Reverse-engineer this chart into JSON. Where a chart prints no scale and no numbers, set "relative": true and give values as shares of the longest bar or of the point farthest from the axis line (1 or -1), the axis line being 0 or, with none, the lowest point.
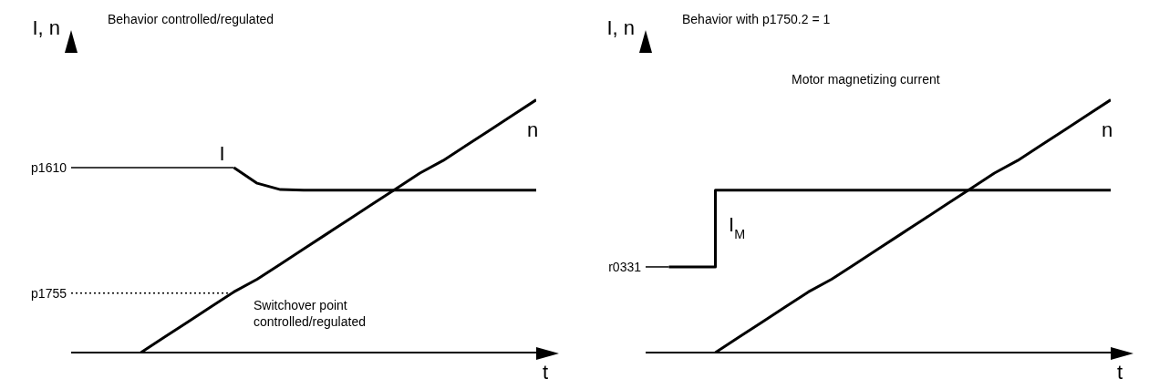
{
  "chart_data": [
    {
      "type": "line",
      "title": "Behavior controlled/regulated",
      "xlabel": "t",
      "ylabel": "I, n",
      "relative": true,
      "marker": "none",
      "categories": [
        null,
        null,
        null,
        null,
        null,
        null,
        null,
        null,
        null,
        null,
        null,
        null,
        null,
        null,
        null,
        null,
        null,
        null,
        null,
        null,
        null
      ],
      "series": [
        {
          "name": "I",
          "color": "#000000",
          "values": [
            null,
            null,
            null,
            null,
            null,
            null,
            null,
            0.732,
            0.67,
            0.645,
            0.643,
            0.643,
            0.643,
            0.643,
            0.643,
            0.643,
            0.643,
            0.643,
            0.643,
            0.643,
            0.643
          ]
        },
        {
          "name": "n",
          "color": "#000000",
          "values": [
            null,
            null,
            null,
            0,
            0.06,
            0.12,
            0.18,
            0.24,
            0.29,
            0.35,
            0.41,
            0.47,
            0.53,
            0.59,
            0.65,
            0.71,
            0.76,
            0.82,
            0.88,
            0.94,
            1
          ]
        }
      ],
      "ref_lines": [
        {
          "axis": "y",
          "value": 0.732,
          "label": "p1610",
          "color": "#000000",
          "line_style": "solid"
        },
        {
          "axis": "y",
          "value": 0.235,
          "label": "p1755",
          "color": "#000000",
          "line_style": "dotted"
        }
      ],
      "annotations": [
        "Switchover point controlled/regulated"
      ]
    },
    {
      "type": "line",
      "title": "Behavior with p1750.2 = 1",
      "xlabel": "t",
      "ylabel": "I, n",
      "relative": true,
      "marker": "none",
      "categories": [
        null,
        null,
        null,
        null,
        null,
        null,
        null,
        null,
        null,
        null,
        null,
        null,
        null,
        null,
        null,
        null,
        null,
        null,
        null,
        null,
        null
      ],
      "series": [
        {
          "name": "I$_{M}$",
          "type": "step",
          "color": "#000000",
          "values": [
            null,
            0.339,
            0.339,
            0.643,
            0.643,
            0.643,
            0.643,
            0.643,
            0.643,
            0.643,
            0.643,
            0.643,
            0.643,
            0.643,
            0.643,
            0.643,
            0.643,
            0.643,
            0.643,
            0.643,
            0.643
          ]
        },
        {
          "name": "n",
          "color": "#000000",
          "values": [
            null,
            null,
            null,
            0,
            0.06,
            0.12,
            0.18,
            0.24,
            0.29,
            0.35,
            0.41,
            0.47,
            0.53,
            0.59,
            0.65,
            0.71,
            0.76,
            0.82,
            0.88,
            0.94,
            1
          ]
        }
      ],
      "ref_lines": [
        {
          "axis": "y",
          "value": 0.339,
          "label": "r0331",
          "color": "#000000",
          "line_style": "solid"
        }
      ],
      "annotations": [
        "Motor magnetizing current"
      ]
    }
  ]
}
